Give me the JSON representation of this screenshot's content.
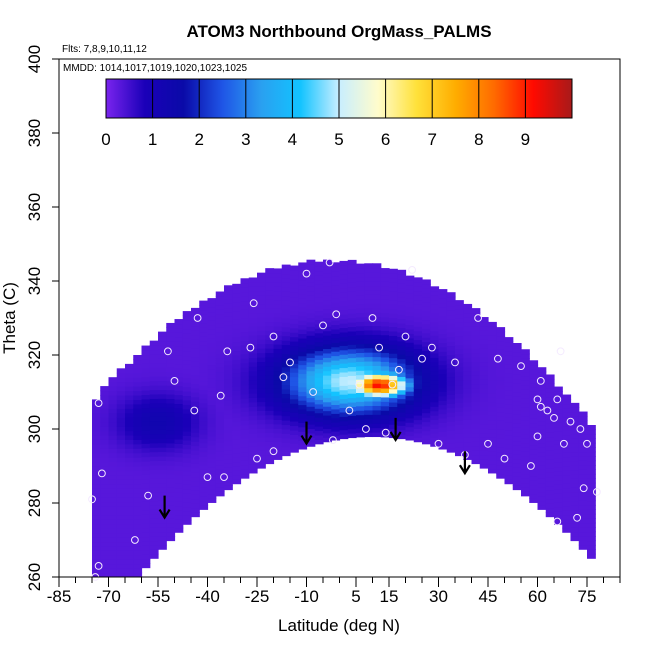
{
  "chart_data": {
    "type": "heatmap",
    "title": "ATOM3 Northbound OrgMass_PALMS",
    "flights_note": "Flts: 7,8,9,10,11,12",
    "dates_note": "MMDD: 1014,1017,1019,1020,1023,1025",
    "xlabel": "Latitude (deg N)",
    "ylabel": "Theta (C)",
    "xlim": [
      -85,
      85
    ],
    "ylim": [
      260,
      400
    ],
    "x_ticks": [
      -85,
      -70,
      -55,
      -40,
      -25,
      -10,
      5,
      15,
      30,
      45,
      60,
      75
    ],
    "y_ticks": [
      260,
      280,
      300,
      320,
      340,
      360,
      380,
      400
    ],
    "colorbar": {
      "min": 0,
      "max": 10,
      "tick_values": [
        0,
        1,
        2,
        3,
        4,
        5,
        6,
        7,
        8,
        9
      ],
      "stops": [
        "#7a24ee",
        "#1a00b8",
        "#0a0aa8",
        "#1f55e6",
        "#2aa0f0",
        "#12c3ff",
        "#c8eeff",
        "#fffccc",
        "#ffe13a",
        "#ffad00",
        "#ff6a00",
        "#ff0a00",
        "#a81a1a"
      ]
    },
    "background_value": 0.3,
    "features": [
      {
        "label": "high-center",
        "lat": 12,
        "theta": 312,
        "value": 9.2,
        "rx": 10,
        "ry": 4
      },
      {
        "label": "mid-center",
        "lat": 3,
        "theta": 313,
        "value": 5.0,
        "rx": 22,
        "ry": 10
      },
      {
        "label": "southern-patch",
        "lat": -55,
        "theta": 302,
        "value": 1.3,
        "rx": 13,
        "ry": 8
      }
    ],
    "arrows": [
      {
        "lat": -53,
        "theta": 282
      },
      {
        "lat": -10,
        "theta": 302
      },
      {
        "lat": 17,
        "theta": 303
      },
      {
        "lat": 38,
        "theta": 294
      }
    ],
    "points": [
      [
        -74,
        260
      ],
      [
        -73,
        263
      ],
      [
        -75,
        281
      ],
      [
        -73,
        307
      ],
      [
        -62,
        270
      ],
      [
        -58,
        282
      ],
      [
        -50,
        313
      ],
      [
        -52,
        321
      ],
      [
        -44,
        305
      ],
      [
        -40,
        287
      ],
      [
        -36,
        309
      ],
      [
        -35,
        287
      ],
      [
        -43,
        330
      ],
      [
        -34,
        321
      ],
      [
        -26,
        334
      ],
      [
        -27,
        322
      ],
      [
        -20,
        325
      ],
      [
        -25,
        292
      ],
      [
        -20,
        294
      ],
      [
        -17,
        314
      ],
      [
        -15,
        318
      ],
      [
        -10,
        342
      ],
      [
        -8,
        310
      ],
      [
        -5,
        328
      ],
      [
        -3,
        345
      ],
      [
        -1,
        331
      ],
      [
        3,
        305
      ],
      [
        -2,
        297
      ],
      [
        6,
        312
      ],
      [
        8,
        300
      ],
      [
        10,
        330
      ],
      [
        12,
        322
      ],
      [
        14,
        299
      ],
      [
        16,
        312
      ],
      [
        18,
        316
      ],
      [
        20,
        325
      ],
      [
        22,
        343
      ],
      [
        25,
        319
      ],
      [
        28,
        322
      ],
      [
        30,
        296
      ],
      [
        35,
        318
      ],
      [
        38,
        293
      ],
      [
        42,
        330
      ],
      [
        45,
        296
      ],
      [
        48,
        319
      ],
      [
        50,
        292
      ],
      [
        55,
        317
      ],
      [
        58,
        290
      ],
      [
        60,
        298
      ],
      [
        60,
        308
      ],
      [
        61,
        306
      ],
      [
        61,
        313
      ],
      [
        63,
        305
      ],
      [
        65,
        303
      ],
      [
        66,
        308
      ],
      [
        67,
        321
      ],
      [
        68,
        296
      ],
      [
        70,
        302
      ],
      [
        73,
        300
      ],
      [
        75,
        296
      ],
      [
        72,
        276
      ],
      [
        74,
        284
      ],
      [
        66,
        275
      ],
      [
        78,
        283
      ],
      [
        -72,
        288
      ]
    ]
  }
}
